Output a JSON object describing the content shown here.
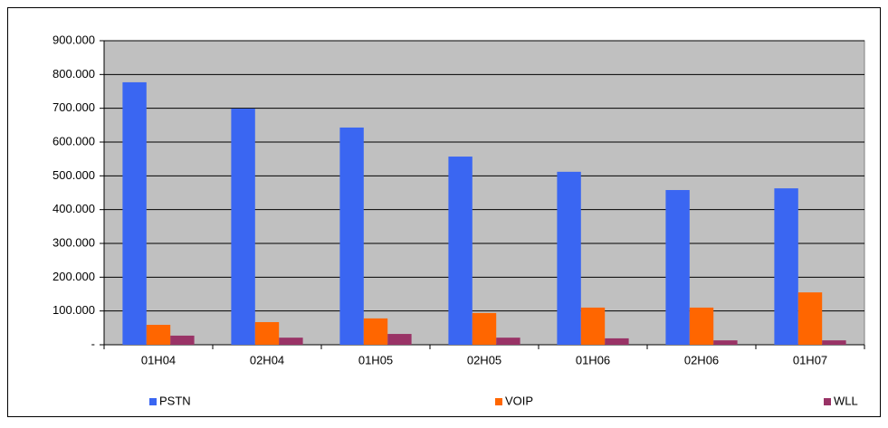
{
  "chart_data": {
    "type": "bar",
    "categories": [
      "01H04",
      "02H04",
      "01H05",
      "02H05",
      "01H06",
      "02H06",
      "01H07"
    ],
    "series": [
      {
        "name": "PSTN",
        "color": "#3a66f2",
        "values": [
          777000,
          699000,
          643000,
          557000,
          512000,
          458000,
          463000
        ]
      },
      {
        "name": "VOIP",
        "color": "#ff6600",
        "values": [
          59000,
          67000,
          78000,
          94000,
          110000,
          110000,
          155000
        ]
      },
      {
        "name": "WLL",
        "color": "#993366",
        "values": [
          27000,
          21000,
          32000,
          21000,
          19000,
          13000,
          13000
        ]
      }
    ],
    "ylim": [
      0,
      900000
    ],
    "yticks": [
      {
        "value": 0,
        "label": "-"
      },
      {
        "value": 100000,
        "label": "100.000"
      },
      {
        "value": 200000,
        "label": "200.000"
      },
      {
        "value": 300000,
        "label": "300.000"
      },
      {
        "value": 400000,
        "label": "400.000"
      },
      {
        "value": 500000,
        "label": "500.000"
      },
      {
        "value": 600000,
        "label": "600.000"
      },
      {
        "value": 700000,
        "label": "700.000"
      },
      {
        "value": 800000,
        "label": "800.000"
      },
      {
        "value": 900000,
        "label": "900.000"
      }
    ],
    "grid": true,
    "legend": "bottom"
  }
}
